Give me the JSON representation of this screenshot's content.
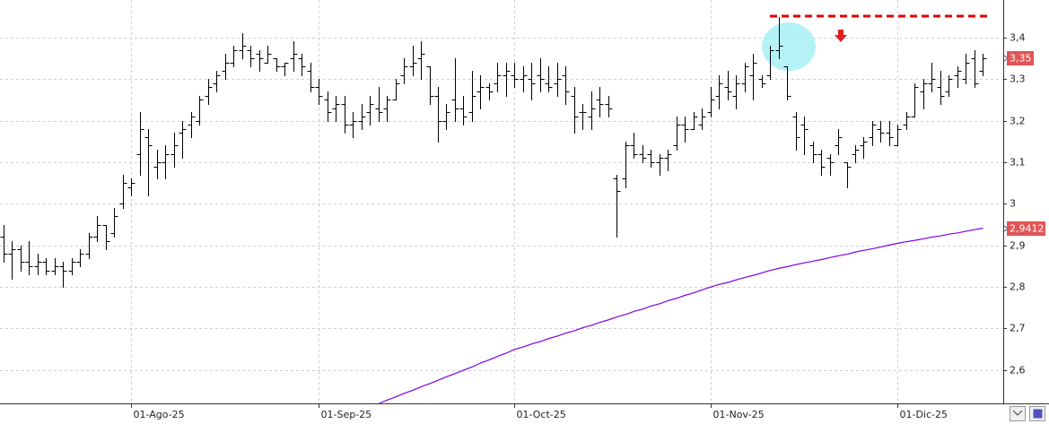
{
  "chart_data": {
    "type": "ohlc",
    "bar_color": "#000000",
    "grid": true,
    "ylim": [
      2.52,
      3.49
    ],
    "yticks": [
      {
        "value": 2.6,
        "label": "2,6"
      },
      {
        "value": 2.7,
        "label": "2,7"
      },
      {
        "value": 2.8,
        "label": "2,8"
      },
      {
        "value": 2.9,
        "label": "2,9"
      },
      3,
      {
        "value": 3.1,
        "label": "3,1"
      },
      {
        "value": 3.2,
        "label": "3,2"
      },
      {
        "value": 3.3,
        "label": "3,3"
      },
      {
        "value": 3.4,
        "label": "3,4"
      }
    ],
    "categories": [
      null,
      null,
      null,
      null,
      null,
      null,
      null,
      null,
      null,
      null,
      null,
      null,
      null,
      null,
      null,
      "01-Ago-25",
      null,
      null,
      null,
      null,
      null,
      null,
      null,
      null,
      null,
      null,
      null,
      null,
      null,
      null,
      null,
      null,
      null,
      null,
      null,
      null,
      null,
      "01-Sep-25",
      null,
      null,
      null,
      null,
      null,
      null,
      null,
      null,
      null,
      null,
      null,
      null,
      null,
      null,
      null,
      null,
      null,
      null,
      null,
      null,
      null,
      null,
      "01-Oct-25",
      null,
      null,
      null,
      null,
      null,
      null,
      null,
      null,
      null,
      null,
      null,
      null,
      null,
      null,
      null,
      null,
      null,
      null,
      null,
      null,
      null,
      null,
      "01-Nov-25",
      null,
      null,
      null,
      null,
      null,
      null,
      null,
      null,
      null,
      null,
      null,
      null,
      null,
      null,
      null,
      null,
      null,
      null,
      null,
      null,
      null,
      "01-Dic-25",
      null,
      null,
      null,
      null,
      null,
      null,
      null,
      null,
      null,
      null
    ],
    "ohlc": [
      [
        2.92,
        2.95,
        2.86,
        2.88
      ],
      [
        2.88,
        2.91,
        2.82,
        2.89
      ],
      [
        2.89,
        2.9,
        2.84,
        2.86
      ],
      [
        2.86,
        2.91,
        2.83,
        2.85
      ],
      [
        2.85,
        2.88,
        2.83,
        2.86
      ],
      [
        2.86,
        2.87,
        2.83,
        2.84
      ],
      [
        2.84,
        2.87,
        2.83,
        2.85
      ],
      [
        2.85,
        2.86,
        2.8,
        2.84
      ],
      [
        2.84,
        2.87,
        2.83,
        2.86
      ],
      [
        2.86,
        2.89,
        2.85,
        2.88
      ],
      [
        2.88,
        2.93,
        2.87,
        2.92
      ],
      [
        2.92,
        2.97,
        2.91,
        2.95
      ],
      [
        2.95,
        2.95,
        2.89,
        2.91
      ],
      [
        2.93,
        2.99,
        2.92,
        2.97
      ],
      [
        3.0,
        3.07,
        2.99,
        3.05
      ],
      [
        3.04,
        3.06,
        3.02,
        3.05
      ],
      [
        3.12,
        3.22,
        3.07,
        3.18
      ],
      [
        3.16,
        3.18,
        3.02,
        3.14
      ],
      [
        3.09,
        3.13,
        3.06,
        3.1
      ],
      [
        3.1,
        3.14,
        3.06,
        3.12
      ],
      [
        3.12,
        3.17,
        3.09,
        3.14
      ],
      [
        3.17,
        3.2,
        3.11,
        3.18
      ],
      [
        3.19,
        3.22,
        3.16,
        3.21
      ],
      [
        3.2,
        3.26,
        3.19,
        3.25
      ],
      [
        3.26,
        3.3,
        3.24,
        3.28
      ],
      [
        3.29,
        3.32,
        3.27,
        3.31
      ],
      [
        3.32,
        3.36,
        3.3,
        3.34
      ],
      [
        3.34,
        3.38,
        3.33,
        3.37
      ],
      [
        3.37,
        3.41,
        3.35,
        3.38
      ],
      [
        3.37,
        3.38,
        3.33,
        3.35
      ],
      [
        3.36,
        3.37,
        3.32,
        3.35
      ],
      [
        3.34,
        3.38,
        3.34,
        3.36
      ],
      [
        3.35,
        3.35,
        3.32,
        3.33
      ],
      [
        3.33,
        3.34,
        3.31,
        3.34
      ],
      [
        3.35,
        3.39,
        3.32,
        3.36
      ],
      [
        3.35,
        3.36,
        3.31,
        3.33
      ],
      [
        3.32,
        3.34,
        3.27,
        3.28
      ],
      [
        3.28,
        3.3,
        3.24,
        3.26
      ],
      [
        3.25,
        3.27,
        3.2,
        3.22
      ],
      [
        3.23,
        3.26,
        3.2,
        3.24
      ],
      [
        3.24,
        3.26,
        3.17,
        3.19
      ],
      [
        3.19,
        3.22,
        3.16,
        3.2
      ],
      [
        3.2,
        3.24,
        3.18,
        3.21
      ],
      [
        3.22,
        3.26,
        3.19,
        3.24
      ],
      [
        3.23,
        3.28,
        3.2,
        3.22
      ],
      [
        3.23,
        3.26,
        3.2,
        3.25
      ],
      [
        3.25,
        3.3,
        3.25,
        3.29
      ],
      [
        3.31,
        3.35,
        3.29,
        3.33
      ],
      [
        3.33,
        3.38,
        3.31,
        3.34
      ],
      [
        3.35,
        3.39,
        3.3,
        3.36
      ],
      [
        3.33,
        3.33,
        3.24,
        3.26
      ],
      [
        3.26,
        3.28,
        3.15,
        3.2
      ],
      [
        3.2,
        3.24,
        3.18,
        3.22
      ],
      [
        3.25,
        3.35,
        3.2,
        3.23
      ],
      [
        3.23,
        3.26,
        3.19,
        3.21
      ],
      [
        3.22,
        3.32,
        3.2,
        3.26
      ],
      [
        3.27,
        3.31,
        3.23,
        3.28
      ],
      [
        3.28,
        3.29,
        3.25,
        3.27
      ],
      [
        3.29,
        3.34,
        3.27,
        3.31
      ],
      [
        3.31,
        3.34,
        3.26,
        3.32
      ],
      [
        3.31,
        3.34,
        3.28,
        3.3
      ],
      [
        3.3,
        3.33,
        3.27,
        3.31
      ],
      [
        3.3,
        3.34,
        3.25,
        3.29
      ],
      [
        3.31,
        3.35,
        3.27,
        3.3
      ],
      [
        3.29,
        3.33,
        3.27,
        3.28
      ],
      [
        3.29,
        3.34,
        3.26,
        3.3
      ],
      [
        3.31,
        3.33,
        3.24,
        3.27
      ],
      [
        3.26,
        3.28,
        3.17,
        3.21
      ],
      [
        3.22,
        3.24,
        3.18,
        3.22
      ],
      [
        3.21,
        3.27,
        3.18,
        3.23
      ],
      [
        3.25,
        3.28,
        3.21,
        3.24
      ],
      [
        3.24,
        3.26,
        3.21,
        3.23
      ],
      [
        3.06,
        3.07,
        2.92,
        3.03
      ],
      [
        3.06,
        3.15,
        3.04,
        3.14
      ],
      [
        3.14,
        3.17,
        3.11,
        3.12
      ],
      [
        3.12,
        3.14,
        3.1,
        3.11
      ],
      [
        3.12,
        3.13,
        3.09,
        3.1
      ],
      [
        3.1,
        3.12,
        3.07,
        3.11
      ],
      [
        3.11,
        3.13,
        3.08,
        3.12
      ],
      [
        3.14,
        3.21,
        3.13,
        3.19
      ],
      [
        3.19,
        3.21,
        3.15,
        3.18
      ],
      [
        3.18,
        3.22,
        3.18,
        3.21
      ],
      [
        3.19,
        3.23,
        3.18,
        3.21
      ],
      [
        3.22,
        3.28,
        3.21,
        3.25
      ],
      [
        3.26,
        3.31,
        3.23,
        3.29
      ],
      [
        3.28,
        3.32,
        3.25,
        3.27
      ],
      [
        3.26,
        3.31,
        3.23,
        3.29
      ],
      [
        3.29,
        3.34,
        3.27,
        3.33
      ],
      [
        3.31,
        3.36,
        3.25,
        3.34
      ],
      [
        3.3,
        3.31,
        3.28,
        3.29
      ],
      [
        3.31,
        3.38,
        3.3,
        3.37
      ],
      [
        3.37,
        3.45,
        3.35,
        3.38
      ],
      [
        3.33,
        3.33,
        3.25,
        3.26
      ],
      [
        3.21,
        3.22,
        3.13,
        3.16
      ],
      [
        3.19,
        3.21,
        3.12,
        3.18
      ],
      [
        3.14,
        3.15,
        3.1,
        3.12
      ],
      [
        3.12,
        3.13,
        3.07,
        3.09
      ],
      [
        3.11,
        3.12,
        3.07,
        3.1
      ],
      [
        3.14,
        3.18,
        3.12,
        3.16
      ],
      [
        3.1,
        3.1,
        3.04,
        3.09
      ],
      [
        3.12,
        3.14,
        3.1,
        3.13
      ],
      [
        3.14,
        3.16,
        3.11,
        3.15
      ],
      [
        3.16,
        3.2,
        3.14,
        3.19
      ],
      [
        3.18,
        3.2,
        3.15,
        3.17
      ],
      [
        3.17,
        3.2,
        3.14,
        3.16
      ],
      [
        3.14,
        3.19,
        3.14,
        3.18
      ],
      [
        3.19,
        3.22,
        3.18,
        3.21
      ],
      [
        3.21,
        3.29,
        3.21,
        3.28
      ],
      [
        3.27,
        3.3,
        3.23,
        3.29
      ],
      [
        3.29,
        3.34,
        3.27,
        3.3
      ],
      [
        3.28,
        3.32,
        3.24,
        3.26
      ],
      [
        3.27,
        3.31,
        3.26,
        3.3
      ],
      [
        3.31,
        3.33,
        3.28,
        3.32
      ],
      [
        3.3,
        3.36,
        3.29,
        3.34
      ],
      [
        3.35,
        3.37,
        3.28,
        3.29
      ],
      [
        3.32,
        3.36,
        3.31,
        3.35
      ]
    ],
    "ma": {
      "color": "#8000e0",
      "values": [
        null,
        null,
        null,
        null,
        null,
        null,
        null,
        null,
        null,
        null,
        null,
        null,
        null,
        null,
        null,
        null,
        null,
        null,
        null,
        null,
        null,
        null,
        null,
        null,
        null,
        null,
        null,
        null,
        null,
        null,
        null,
        null,
        null,
        null,
        null,
        null,
        null,
        null,
        null,
        null,
        null,
        null,
        null,
        null,
        2.52,
        2.528,
        2.536,
        2.544,
        2.552,
        2.56,
        2.568,
        2.576,
        2.584,
        2.592,
        2.6,
        2.608,
        2.617,
        2.625,
        2.633,
        2.641,
        2.65,
        2.656,
        2.663,
        2.669,
        2.676,
        2.682,
        2.689,
        2.695,
        2.702,
        2.708,
        2.715,
        2.721,
        2.728,
        2.734,
        2.741,
        2.747,
        2.754,
        2.76,
        2.767,
        2.773,
        2.78,
        2.786,
        2.793,
        2.8,
        2.806,
        2.811,
        2.817,
        2.823,
        2.828,
        2.834,
        2.84,
        2.845,
        2.849,
        2.854,
        2.858,
        2.862,
        2.866,
        2.871,
        2.875,
        2.879,
        2.884,
        2.888,
        2.892,
        2.896,
        2.901,
        2.905,
        2.909,
        2.912,
        2.916,
        2.92,
        2.923,
        2.927,
        2.93,
        2.934,
        2.938,
        2.9412
      ]
    },
    "last_price": {
      "value": 3.35,
      "label": "3,35"
    },
    "ma_last": {
      "value": 2.9412,
      "label": "2,9412"
    },
    "hline": {
      "value": 3.452,
      "color": "#e00000"
    }
  }
}
